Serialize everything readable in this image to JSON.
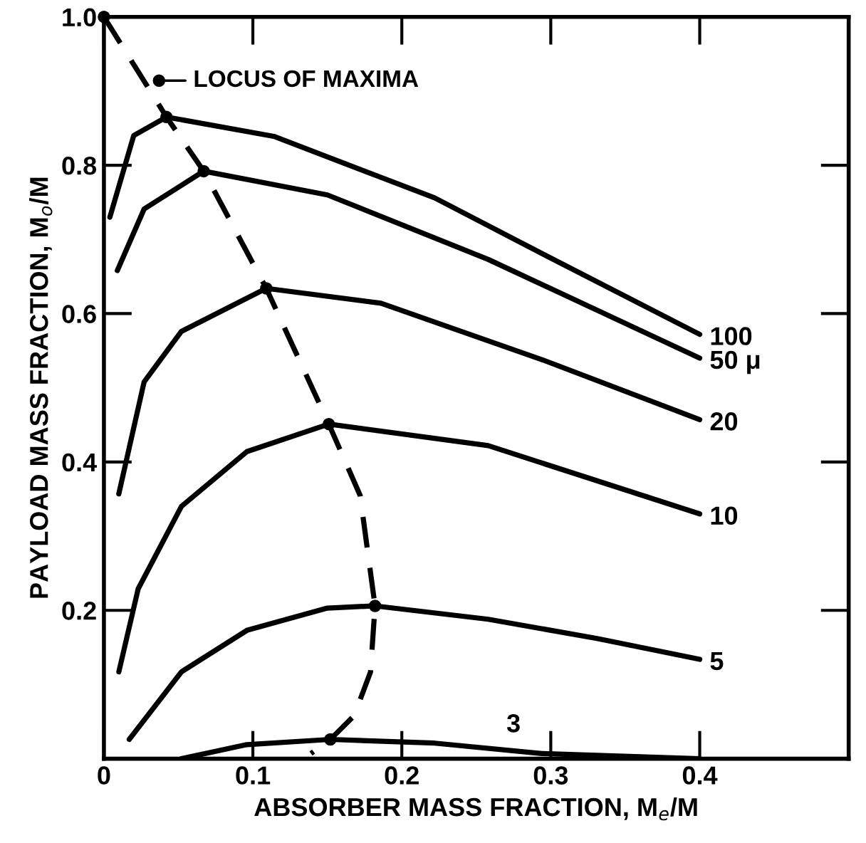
{
  "chart_data": {
    "type": "line",
    "xlabel": "ABSORBER MASS FRACTION, M$_{e}$/M",
    "ylabel": "PAYLOAD MASS FRACTION, M$_{o}$/M",
    "xlim": [
      0,
      0.5
    ],
    "ylim": [
      0,
      1.0
    ],
    "xticks": [
      0,
      0.1,
      0.2,
      0.3,
      0.4
    ],
    "yticks": [
      0.2,
      0.4,
      0.6,
      0.8,
      {
        "value": 1.0,
        "label": "1.0"
      }
    ],
    "grid": false,
    "legend": false,
    "line_style": "solid",
    "marker": "none",
    "series": [
      {
        "name": "100",
        "color": "#000000",
        "x": [
          0.004,
          0.02,
          0.042,
          0.114,
          0.222,
          0.294,
          0.4
        ],
        "values": [
          0.73,
          0.84,
          0.865,
          0.839,
          0.756,
          0.681,
          0.572
        ]
      },
      {
        "name": "50 μ",
        "color": "#000000",
        "x": [
          0.009,
          0.027,
          0.067,
          0.15,
          0.258,
          0.4
        ],
        "values": [
          0.658,
          0.741,
          0.792,
          0.76,
          0.673,
          0.54
        ]
      },
      {
        "name": "20",
        "color": "#000000",
        "x": [
          0.01,
          0.027,
          0.052,
          0.109,
          0.186,
          0.294,
          0.4
        ],
        "values": [
          0.357,
          0.508,
          0.576,
          0.634,
          0.614,
          0.538,
          0.457
        ]
      },
      {
        "name": "10",
        "color": "#000000",
        "x": [
          0.01,
          0.023,
          0.052,
          0.096,
          0.151,
          0.258,
          0.4
        ],
        "values": [
          0.117,
          0.229,
          0.34,
          0.414,
          0.451,
          0.422,
          0.33
        ]
      },
      {
        "name": "5",
        "color": "#000000",
        "x": [
          0.017,
          0.052,
          0.096,
          0.15,
          0.182,
          0.258,
          0.331,
          0.4
        ],
        "values": [
          0.026,
          0.117,
          0.173,
          0.203,
          0.206,
          0.188,
          0.162,
          0.134
        ]
      },
      {
        "color": "#000000",
        "x": [
          0.052,
          0.096,
          0.152,
          0.222,
          0.294,
          0.4
        ],
        "values": [
          0.0,
          0.019,
          0.026,
          0.021,
          0.007,
          0.0
        ]
      },
      {
        "color": "#000000",
        "line_style": "dashed",
        "x": [
          0,
          0.042,
          0.067,
          0.109,
          0.151,
          0.172,
          0.182,
          0.179,
          0.168,
          0.152,
          0.139
        ],
        "values": [
          1.0,
          0.865,
          0.792,
          0.634,
          0.451,
          0.355,
          0.206,
          0.117,
          0.058,
          0.026,
          0.007
        ]
      },
      {
        "type": "scatter",
        "marker": "circle",
        "color": "#000000",
        "x": [
          0,
          0.037,
          0.042,
          0.067,
          0.109,
          0.151,
          0.182,
          0.152
        ],
        "values": [
          1.0,
          0.914,
          0.865,
          0.792,
          0.634,
          0.451,
          0.206,
          0.026
        ]
      }
    ],
    "annotations": [
      {
        "text": "LOCUS OF MAXIMA",
        "x": 0.037,
        "y": 0.914
      },
      {
        "text": "3",
        "x": 0.275,
        "y": 0.018
      }
    ]
  }
}
